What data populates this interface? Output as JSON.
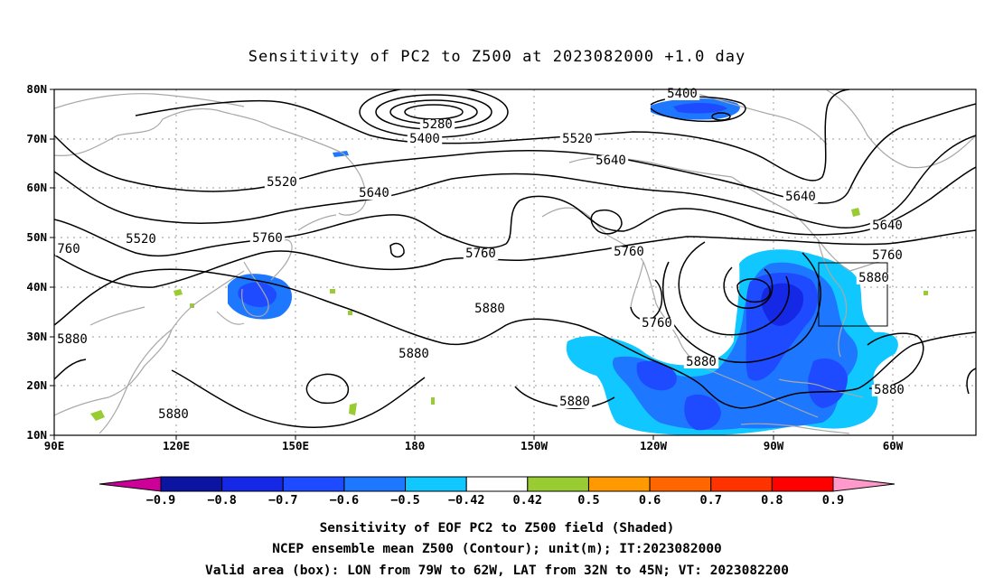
{
  "title": "Sensitivity of PC2 to Z500 at 2023082000 +1.0 day",
  "map": {
    "lat_labels": [
      "80N",
      "70N",
      "60N",
      "50N",
      "40N",
      "30N",
      "20N",
      "10N"
    ],
    "lon_labels": [
      "90E",
      "120E",
      "150E",
      "180",
      "150W",
      "120W",
      "90W",
      "60W"
    ],
    "lon_range": [
      "90E",
      "30W"
    ],
    "lat_range": [
      "10N",
      "80N"
    ],
    "grid": true,
    "contour_color": "#000000",
    "coastline_color": "#a8a8a8",
    "contour_labels": [
      "5400",
      "5280",
      "5400",
      "5520",
      "5640",
      "5520",
      "5640",
      "5640",
      "5760",
      "760",
      "5760",
      "5760",
      "5880",
      "5880",
      "5880",
      "5880",
      "5760",
      "5880",
      "5880",
      "5520",
      "5640",
      "5760",
      "5880",
      "5880"
    ],
    "valid_box": {
      "lon": [
        "79W",
        "62W"
      ],
      "lat": [
        "32N",
        "45N"
      ]
    }
  },
  "colorbar": {
    "labels": [
      "-0.9",
      "-0.8",
      "-0.7",
      "-0.6",
      "-0.5",
      "-0.42",
      "0.42",
      "0.5",
      "0.6",
      "0.7",
      "0.8",
      "0.9"
    ],
    "colors": [
      "#cc0099",
      "#0a14a0",
      "#1428e6",
      "#1e4bff",
      "#1e78ff",
      "#10c8ff",
      "#ffffff",
      "#99cc33",
      "#ff9900",
      "#ff6600",
      "#ff3300",
      "#ff0000",
      "#ff99cc"
    ]
  },
  "caption": [
    "Sensitivity of EOF PC2 to Z500 field (Shaded)",
    "NCEP ensemble mean Z500 (Contour); unit(m); IT:2023082000",
    "Valid area (box): LON from 79W to 62W, LAT from 32N to 45N; VT: 2023082200"
  ]
}
